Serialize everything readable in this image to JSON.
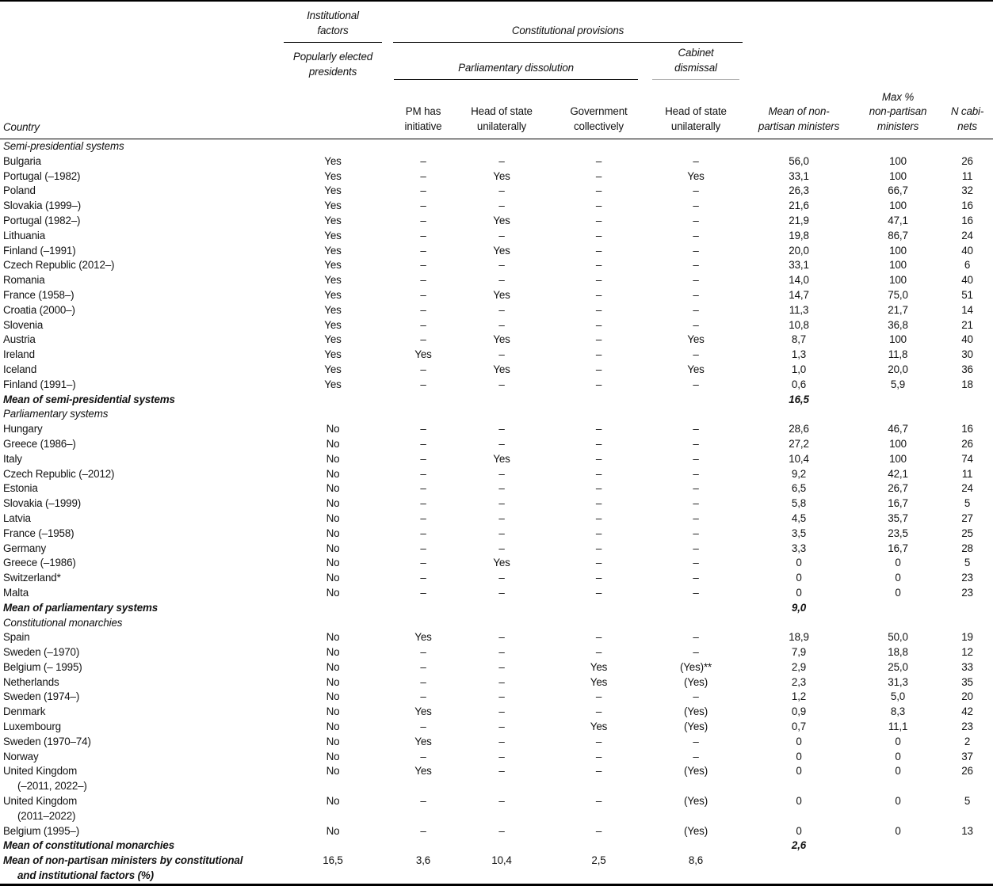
{
  "table": {
    "header": {
      "country": "Country",
      "group_institutional": "Institutional\nfactors",
      "group_constitutional": "Constitutional provisions",
      "sub_popularly_elected": "Popularly elected\npresidents",
      "sub_parliamentary_dissolution": "Parliamentary dissolution",
      "sub_cabinet_dismissal": "Cabinet\ndismissal",
      "cols": [
        "PM has\ninitiative",
        "Head of state\nunilaterally",
        "Government\ncollectively",
        "Head of state\nunilaterally",
        "Mean of non-\npartisan ministers",
        "Max %\nnon-partisan\nministers",
        "N cabi-\nnets"
      ]
    },
    "sections": [
      {
        "title": "Semi-presidential systems",
        "rows": [
          {
            "country": "Bulgaria",
            "cells": [
              "Yes",
              "–",
              "–",
              "–",
              "–",
              "56,0",
              "100",
              "26"
            ]
          },
          {
            "country": "Portugal (–1982)",
            "cells": [
              "Yes",
              "–",
              "Yes",
              "–",
              "Yes",
              "33,1",
              "100",
              "11"
            ]
          },
          {
            "country": "Poland",
            "cells": [
              "Yes",
              "–",
              "–",
              "–",
              "–",
              "26,3",
              "66,7",
              "32"
            ]
          },
          {
            "country": "Slovakia (1999–)",
            "cells": [
              "Yes",
              "–",
              "–",
              "–",
              "–",
              "21,6",
              "100",
              "16"
            ]
          },
          {
            "country": "Portugal (1982–)",
            "cells": [
              "Yes",
              "–",
              "Yes",
              "–",
              "–",
              "21,9",
              "47,1",
              "16"
            ]
          },
          {
            "country": "Lithuania",
            "cells": [
              "Yes",
              "–",
              "–",
              "–",
              "–",
              "19,8",
              "86,7",
              "24"
            ]
          },
          {
            "country": "Finland (–1991)",
            "cells": [
              "Yes",
              "–",
              "Yes",
              "–",
              "–",
              "20,0",
              "100",
              "40"
            ]
          },
          {
            "country": "Czech Republic (2012–)",
            "cells": [
              "Yes",
              "–",
              "–",
              "–",
              "–",
              "33,1",
              "100",
              "6"
            ]
          },
          {
            "country": "Romania",
            "cells": [
              "Yes",
              "–",
              "–",
              "–",
              "–",
              "14,0",
              "100",
              "40"
            ]
          },
          {
            "country": "France (1958–)",
            "cells": [
              "Yes",
              "–",
              "Yes",
              "–",
              "–",
              "14,7",
              "75,0",
              "51"
            ]
          },
          {
            "country": "Croatia (2000–)",
            "cells": [
              "Yes",
              "–",
              "–",
              "–",
              "–",
              "11,3",
              "21,7",
              "14"
            ]
          },
          {
            "country": "Slovenia",
            "cells": [
              "Yes",
              "–",
              "–",
              "–",
              "–",
              "10,8",
              "36,8",
              "21"
            ]
          },
          {
            "country": "Austria",
            "cells": [
              "Yes",
              "–",
              "Yes",
              "–",
              "Yes",
              "8,7",
              "100",
              "40"
            ]
          },
          {
            "country": "Ireland",
            "cells": [
              "Yes",
              "Yes",
              "–",
              "–",
              "–",
              "1,3",
              "11,8",
              "30"
            ]
          },
          {
            "country": "Iceland",
            "cells": [
              "Yes",
              "–",
              "Yes",
              "–",
              "Yes",
              "1,0",
              "20,0",
              "36"
            ]
          },
          {
            "country": "Finland (1991–)",
            "cells": [
              "Yes",
              "–",
              "–",
              "–",
              "–",
              "0,6",
              "5,9",
              "18"
            ]
          }
        ],
        "mean_label": "Mean of semi-presidential systems",
        "mean_value": "16,5"
      },
      {
        "title": "Parliamentary systems",
        "rows": [
          {
            "country": "Hungary",
            "cells": [
              "No",
              "–",
              "–",
              "–",
              "–",
              "28,6",
              "46,7",
              "16"
            ]
          },
          {
            "country": "Greece (1986–)",
            "cells": [
              "No",
              "–",
              "–",
              "–",
              "–",
              "27,2",
              "100",
              "26"
            ]
          },
          {
            "country": "Italy",
            "cells": [
              "No",
              "–",
              "Yes",
              "–",
              "–",
              "10,4",
              "100",
              "74"
            ]
          },
          {
            "country": "Czech Republic (–2012)",
            "cells": [
              "No",
              "–",
              "–",
              "–",
              "–",
              "9,2",
              "42,1",
              "11"
            ]
          },
          {
            "country": "Estonia",
            "cells": [
              "No",
              "–",
              "–",
              "–",
              "–",
              "6,5",
              "26,7",
              "24"
            ]
          },
          {
            "country": "Slovakia (–1999)",
            "cells": [
              "No",
              "–",
              "–",
              "–",
              "–",
              "5,8",
              "16,7",
              "5"
            ]
          },
          {
            "country": "Latvia",
            "cells": [
              "No",
              "–",
              "–",
              "–",
              "–",
              "4,5",
              "35,7",
              "27"
            ]
          },
          {
            "country": "France (–1958)",
            "cells": [
              "No",
              "–",
              "–",
              "–",
              "–",
              "3,5",
              "23,5",
              "25"
            ]
          },
          {
            "country": "Germany",
            "cells": [
              "No",
              "–",
              "–",
              "–",
              "–",
              "3,3",
              "16,7",
              "28"
            ]
          },
          {
            "country": "Greece (–1986)",
            "cells": [
              "No",
              "–",
              "Yes",
              "–",
              "–",
              "0",
              "0",
              "5"
            ]
          },
          {
            "country": "Switzerland*",
            "cells": [
              "No",
              "–",
              "–",
              "–",
              "–",
              "0",
              "0",
              "23"
            ]
          },
          {
            "country": "Malta",
            "cells": [
              "No",
              "–",
              "–",
              "–",
              "–",
              "0",
              "0",
              "23"
            ]
          }
        ],
        "mean_label": "Mean of parliamentary systems",
        "mean_value": "9,0"
      },
      {
        "title": "Constitutional monarchies",
        "rows": [
          {
            "country": "Spain",
            "cells": [
              "No",
              "Yes",
              "–",
              "–",
              "–",
              "18,9",
              "50,0",
              "19"
            ]
          },
          {
            "country": "Sweden (–1970)",
            "cells": [
              "No",
              "–",
              "–",
              "–",
              "–",
              "7,9",
              "18,8",
              "12"
            ]
          },
          {
            "country": "Belgium (– 1995)",
            "cells": [
              "No",
              "–",
              "–",
              "Yes",
              "(Yes)**",
              "2,9",
              "25,0",
              "33"
            ]
          },
          {
            "country": "Netherlands",
            "cells": [
              "No",
              "–",
              "–",
              "Yes",
              "(Yes)",
              "2,3",
              "31,3",
              "35"
            ]
          },
          {
            "country": "Sweden (1974–)",
            "cells": [
              "No",
              "–",
              "–",
              "–",
              "–",
              "1,2",
              "5,0",
              "20"
            ]
          },
          {
            "country": "Denmark",
            "cells": [
              "No",
              "Yes",
              "–",
              "–",
              "(Yes)",
              "0,9",
              "8,3",
              "42"
            ]
          },
          {
            "country": "Luxembourg",
            "cells": [
              "No",
              "–",
              "–",
              "Yes",
              "(Yes)",
              "0,7",
              "11,1",
              "23"
            ]
          },
          {
            "country": "Sweden (1970–74)",
            "cells": [
              "No",
              "Yes",
              "–",
              "–",
              "–",
              "0",
              "0",
              "2"
            ]
          },
          {
            "country": "Norway",
            "cells": [
              "No",
              "–",
              "–",
              "–",
              "–",
              "0",
              "0",
              "37"
            ]
          },
          {
            "country": "United Kingdom",
            "country_line2": "(–2011, 2022–)",
            "cells": [
              "No",
              "Yes",
              "–",
              "–",
              "(Yes)",
              "0",
              "0",
              "26"
            ]
          },
          {
            "country": "United Kingdom",
            "country_line2": "(2011–2022)",
            "cells": [
              "No",
              "–",
              "–",
              "–",
              "(Yes)",
              "0",
              "0",
              "5"
            ]
          },
          {
            "country": "Belgium (1995–)",
            "cells": [
              "No",
              "–",
              "–",
              "–",
              "(Yes)",
              "0",
              "0",
              "13"
            ]
          }
        ],
        "mean_label": "Mean of constitutional monarchies",
        "mean_value": "2,6"
      }
    ],
    "footer": {
      "label_line1": "Mean of non-partisan ministers by constitutional",
      "label_line2": "and institutional factors (%)",
      "values": [
        "16,5",
        "3,6",
        "10,4",
        "2,5",
        "8,6"
      ]
    }
  }
}
